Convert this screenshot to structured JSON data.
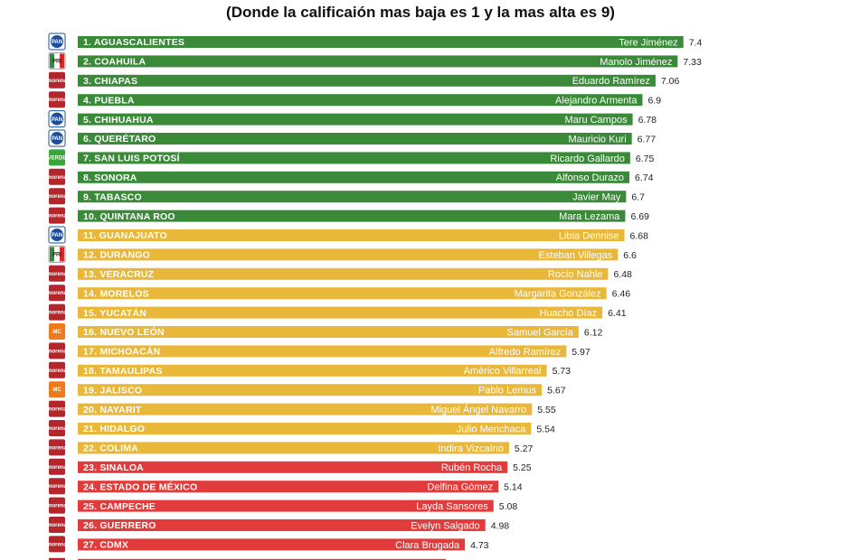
{
  "header": {
    "title_partial": "g",
    "subtitle": "(Donde la calificaión mas baja es 1 y la mas alta es 9)"
  },
  "colors": {
    "green": "#3a8a3a",
    "yellow": "#e9b73a",
    "red": "#e23b3b",
    "pan": "#1d4f9c",
    "pri_green": "#2e8b3a",
    "pri_red": "#d42a2a",
    "morena": "#b4262b",
    "mc": "#f07a1a",
    "verde": "#3aa53a"
  },
  "chart_data": {
    "type": "bar",
    "orientation": "horizontal",
    "title": "",
    "xlabel": "",
    "ylabel": "",
    "xlim": [
      0,
      9
    ],
    "grid": false,
    "legend": "none",
    "categories": [
      "1. AGUASCALIENTES",
      "2. COAHUILA",
      "3. CHIAPAS",
      "4. PUEBLA",
      "5. CHIHUAHUA",
      "6. QUERÉTARO",
      "7. SAN LUIS POTOSÍ",
      "8. SONORA",
      "9. TABASCO",
      "10. QUINTANA ROO",
      "11. GUANAJUATO",
      "12. DURANGO",
      "13. VERACRUZ",
      "14. MORELOS",
      "15. YUCATÁN",
      "16. NUEVO LEÓN",
      "17. MICHOACÁN",
      "18. TAMAULIPAS",
      "19. JALISCO",
      "20. NAYARIT",
      "21. HIDALGO",
      "22. COLIMA",
      "23. SINALOA",
      "24. ESTADO DE MÉXICO",
      "25. CAMPECHE",
      "26. GUERRERO",
      "27. CDMX"
    ],
    "governors": [
      "Tere Jiménez",
      "Manolo Jiménez",
      "Eduardo Ramírez",
      "Alejandro Armenta",
      "Maru Campos",
      "Mauricio Kuri",
      "Ricardo Gallardo",
      "Alfonso Durazo",
      "Javier May",
      "Mara Lezama",
      "Libia Dennise",
      "Esteban Villegas",
      "Rocío Nahle",
      "Margarita González",
      "Huacho Díaz",
      "Samuel García",
      "Alfredo Ramírez",
      "Américo Villarreal",
      "Pablo Lemus",
      "Miguel Ángel Navarro",
      "Julio Menchaca",
      "Indira Vizcaíno",
      "Rubén Rocha",
      "Delfina Gómez",
      "Layda Sansores",
      "Evelyn Salgado",
      "Clara Brugada"
    ],
    "values": [
      7.4,
      7.33,
      7.06,
      6.9,
      6.78,
      6.77,
      6.75,
      6.74,
      6.7,
      6.69,
      6.68,
      6.6,
      6.48,
      6.46,
      6.41,
      6.12,
      5.97,
      5.73,
      5.67,
      5.55,
      5.54,
      5.27,
      5.25,
      5.14,
      5.08,
      4.98,
      4.73
    ],
    "value_labels": [
      "7.4",
      "7.33",
      "7.06",
      "6.9",
      "6.78",
      "6.77",
      "6.75",
      "6.74",
      "6.7",
      "6.69",
      "6.68",
      "6.6",
      "6.48",
      "6.46",
      "6.41",
      "6.12",
      "5.97",
      "5.73",
      "5.67",
      "5.55",
      "5.54",
      "5.27",
      "5.25",
      "5.14",
      "5.08",
      "4.98",
      "4.73"
    ],
    "tiers": [
      "green",
      "green",
      "green",
      "green",
      "green",
      "green",
      "green",
      "green",
      "green",
      "green",
      "yellow",
      "yellow",
      "yellow",
      "yellow",
      "yellow",
      "yellow",
      "yellow",
      "yellow",
      "yellow",
      "yellow",
      "yellow",
      "yellow",
      "red",
      "red",
      "red",
      "red",
      "red"
    ],
    "parties": [
      "pan",
      "pri",
      "morena",
      "morena",
      "pan",
      "pan",
      "verde",
      "morena",
      "morena",
      "morena",
      "pan",
      "pri",
      "morena",
      "morena",
      "morena",
      "mc",
      "morena",
      "morena",
      "mc",
      "morena",
      "morena",
      "morena",
      "morena",
      "morena",
      "morena",
      "morena",
      "morena"
    ],
    "party_badges": {
      "pan": "PAN",
      "pri": "PRI",
      "morena": "morena",
      "mc": "MC",
      "verde": "VERDE"
    }
  }
}
